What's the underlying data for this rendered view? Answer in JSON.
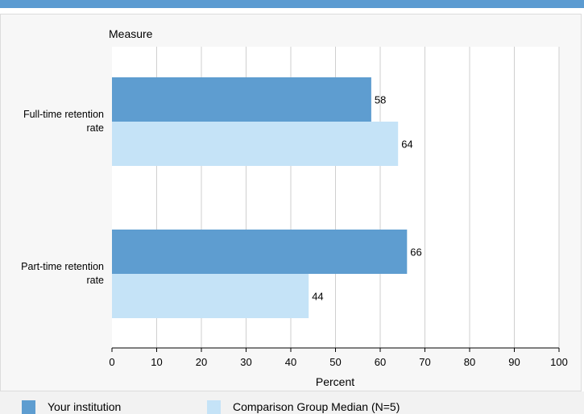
{
  "colors": {
    "top_bar": "#5b9bd1",
    "panel_background": "#f7f7f7",
    "plot_background": "#ffffff",
    "gridline": "#cfcfcf",
    "series_1": "#5e9dd0",
    "series_2": "#c5e3f7",
    "text": "#000000"
  },
  "chart_data": {
    "type": "bar",
    "orientation": "horizontal",
    "title": "",
    "ylabel": "Measure",
    "xlabel": "Percent",
    "categories": [
      "Full-time retention rate",
      "Part-time retention rate"
    ],
    "category_label_lines": [
      [
        "Full-time retention",
        "rate"
      ],
      [
        "Part-time retention",
        "rate"
      ]
    ],
    "series": [
      {
        "name": "Your institution",
        "values": [
          58,
          66
        ]
      },
      {
        "name": "Comparison Group Median (N=5)",
        "values": [
          64,
          44
        ]
      }
    ],
    "xlim": [
      0,
      100
    ],
    "xticks": [
      0,
      10,
      20,
      30,
      40,
      50,
      60,
      70,
      80,
      90,
      100
    ],
    "grid": true,
    "data_labels": true,
    "legend_position": "bottom"
  }
}
